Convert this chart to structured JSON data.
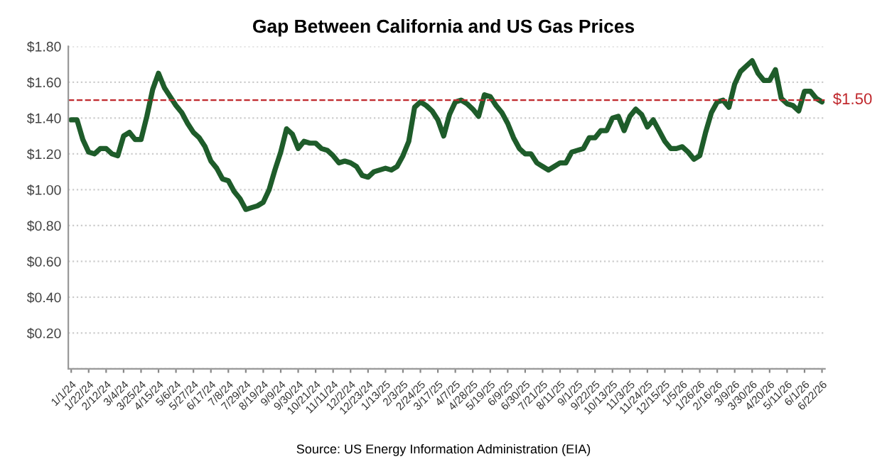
{
  "chart_data": {
    "type": "line",
    "title": "Gap Between California and US Gas Prices",
    "categories": [
      "1/1/24",
      null,
      null,
      "1/22/24",
      null,
      null,
      "2/12/24",
      null,
      null,
      "3/4/24",
      null,
      null,
      "3/25/24",
      null,
      null,
      "4/15/24",
      null,
      null,
      "5/6/24",
      null,
      null,
      "5/27/24",
      null,
      null,
      "6/17/24",
      null,
      null,
      "7/8/24",
      null,
      null,
      "7/29/24",
      null,
      null,
      "8/19/24",
      null,
      null,
      "9/9/24",
      null,
      null,
      "9/30/24",
      null,
      null,
      "10/21/24",
      null,
      null,
      "11/11/24",
      null,
      null,
      "12/2/24",
      null,
      null,
      "12/23/24",
      null,
      null,
      "1/13/25",
      null,
      null,
      "2/3/25",
      null,
      null,
      "2/24/25",
      null,
      null,
      "3/17/25",
      null,
      null,
      "4/7/25",
      null,
      null,
      "4/28/25",
      null,
      null,
      "5/19/25",
      null,
      null,
      "6/9/25",
      null,
      null,
      "6/30/25",
      null,
      null,
      "7/21/25",
      null,
      null,
      "8/11/25",
      null,
      null,
      "9/1/25",
      null,
      null,
      "9/22/25",
      null,
      null,
      "10/13/25",
      null,
      null,
      "11/3/25",
      null,
      null,
      "11/24/25",
      null,
      null,
      "12/15/25",
      null,
      null,
      "1/5/26",
      null,
      null,
      "1/26/26",
      null,
      null,
      "2/16/26",
      null,
      null,
      "3/9/26",
      null,
      null,
      "3/30/26",
      null,
      null,
      "4/20/26",
      null,
      null,
      "5/11/26",
      null,
      null,
      "6/1/26",
      null,
      null,
      "6/22/26"
    ],
    "series": [
      {
        "color": "#1e5c2a",
        "values": [
          1.39,
          1.39,
          1.28,
          1.21,
          1.2,
          1.23,
          1.23,
          1.2,
          1.19,
          1.3,
          1.32,
          1.28,
          1.28,
          1.41,
          1.56,
          1.65,
          1.57,
          1.52,
          1.47,
          1.43,
          1.37,
          1.32,
          1.29,
          1.24,
          1.16,
          1.12,
          1.06,
          1.05,
          0.99,
          0.95,
          0.89,
          0.9,
          0.91,
          0.93,
          1.0,
          1.11,
          1.21,
          1.34,
          1.31,
          1.23,
          1.27,
          1.26,
          1.26,
          1.23,
          1.22,
          1.19,
          1.15,
          1.16,
          1.15,
          1.13,
          1.08,
          1.07,
          1.1,
          1.11,
          1.12,
          1.11,
          1.13,
          1.19,
          1.27,
          1.46,
          1.49,
          1.47,
          1.44,
          1.39,
          1.3,
          1.42,
          1.49,
          1.5,
          1.48,
          1.45,
          1.41,
          1.53,
          1.52,
          1.47,
          1.43,
          1.37,
          1.29,
          1.23,
          1.2,
          1.2,
          1.15,
          1.13,
          1.11,
          1.13,
          1.15,
          1.15,
          1.21,
          1.22,
          1.23,
          1.29,
          1.29,
          1.33,
          1.33,
          1.4,
          1.41,
          1.33,
          1.41,
          1.45,
          1.42,
          1.35,
          1.39,
          1.33,
          1.27,
          1.23,
          1.23,
          1.24,
          1.21,
          1.17,
          1.19,
          1.32,
          1.43,
          1.49,
          1.5,
          1.46,
          1.59,
          1.66,
          1.69,
          1.72,
          1.65,
          1.61,
          1.61,
          1.67,
          1.51,
          1.48,
          1.47,
          1.44,
          1.55,
          1.55,
          1.51,
          1.49
        ]
      }
    ],
    "ylim": [
      0,
      1.8
    ],
    "yticks": [
      {
        "value": 0,
        "label": null
      },
      {
        "value": 0.2,
        "label": "$0.20"
      },
      {
        "value": 0.4,
        "label": "$0.40"
      },
      {
        "value": 0.6,
        "label": "$0.60"
      },
      {
        "value": 0.8,
        "label": "$0.80"
      },
      {
        "value": 1.0,
        "label": "$1.00"
      },
      {
        "value": 1.2,
        "label": "$1.20"
      },
      {
        "value": 1.4,
        "label": "$1.40"
      },
      {
        "value": 1.6,
        "label": "$1.60"
      },
      {
        "value": 1.8,
        "label": "$1.80"
      }
    ],
    "grid": "y",
    "marker": "none",
    "line_style": "solid",
    "ref_lines": [
      {
        "axis": "y",
        "value": 1.5,
        "label": "$1.50",
        "color": "#c0282d",
        "line_style": "dashed"
      }
    ],
    "annotations": [
      "Source: US Energy Information Administration (EIA)"
    ]
  }
}
